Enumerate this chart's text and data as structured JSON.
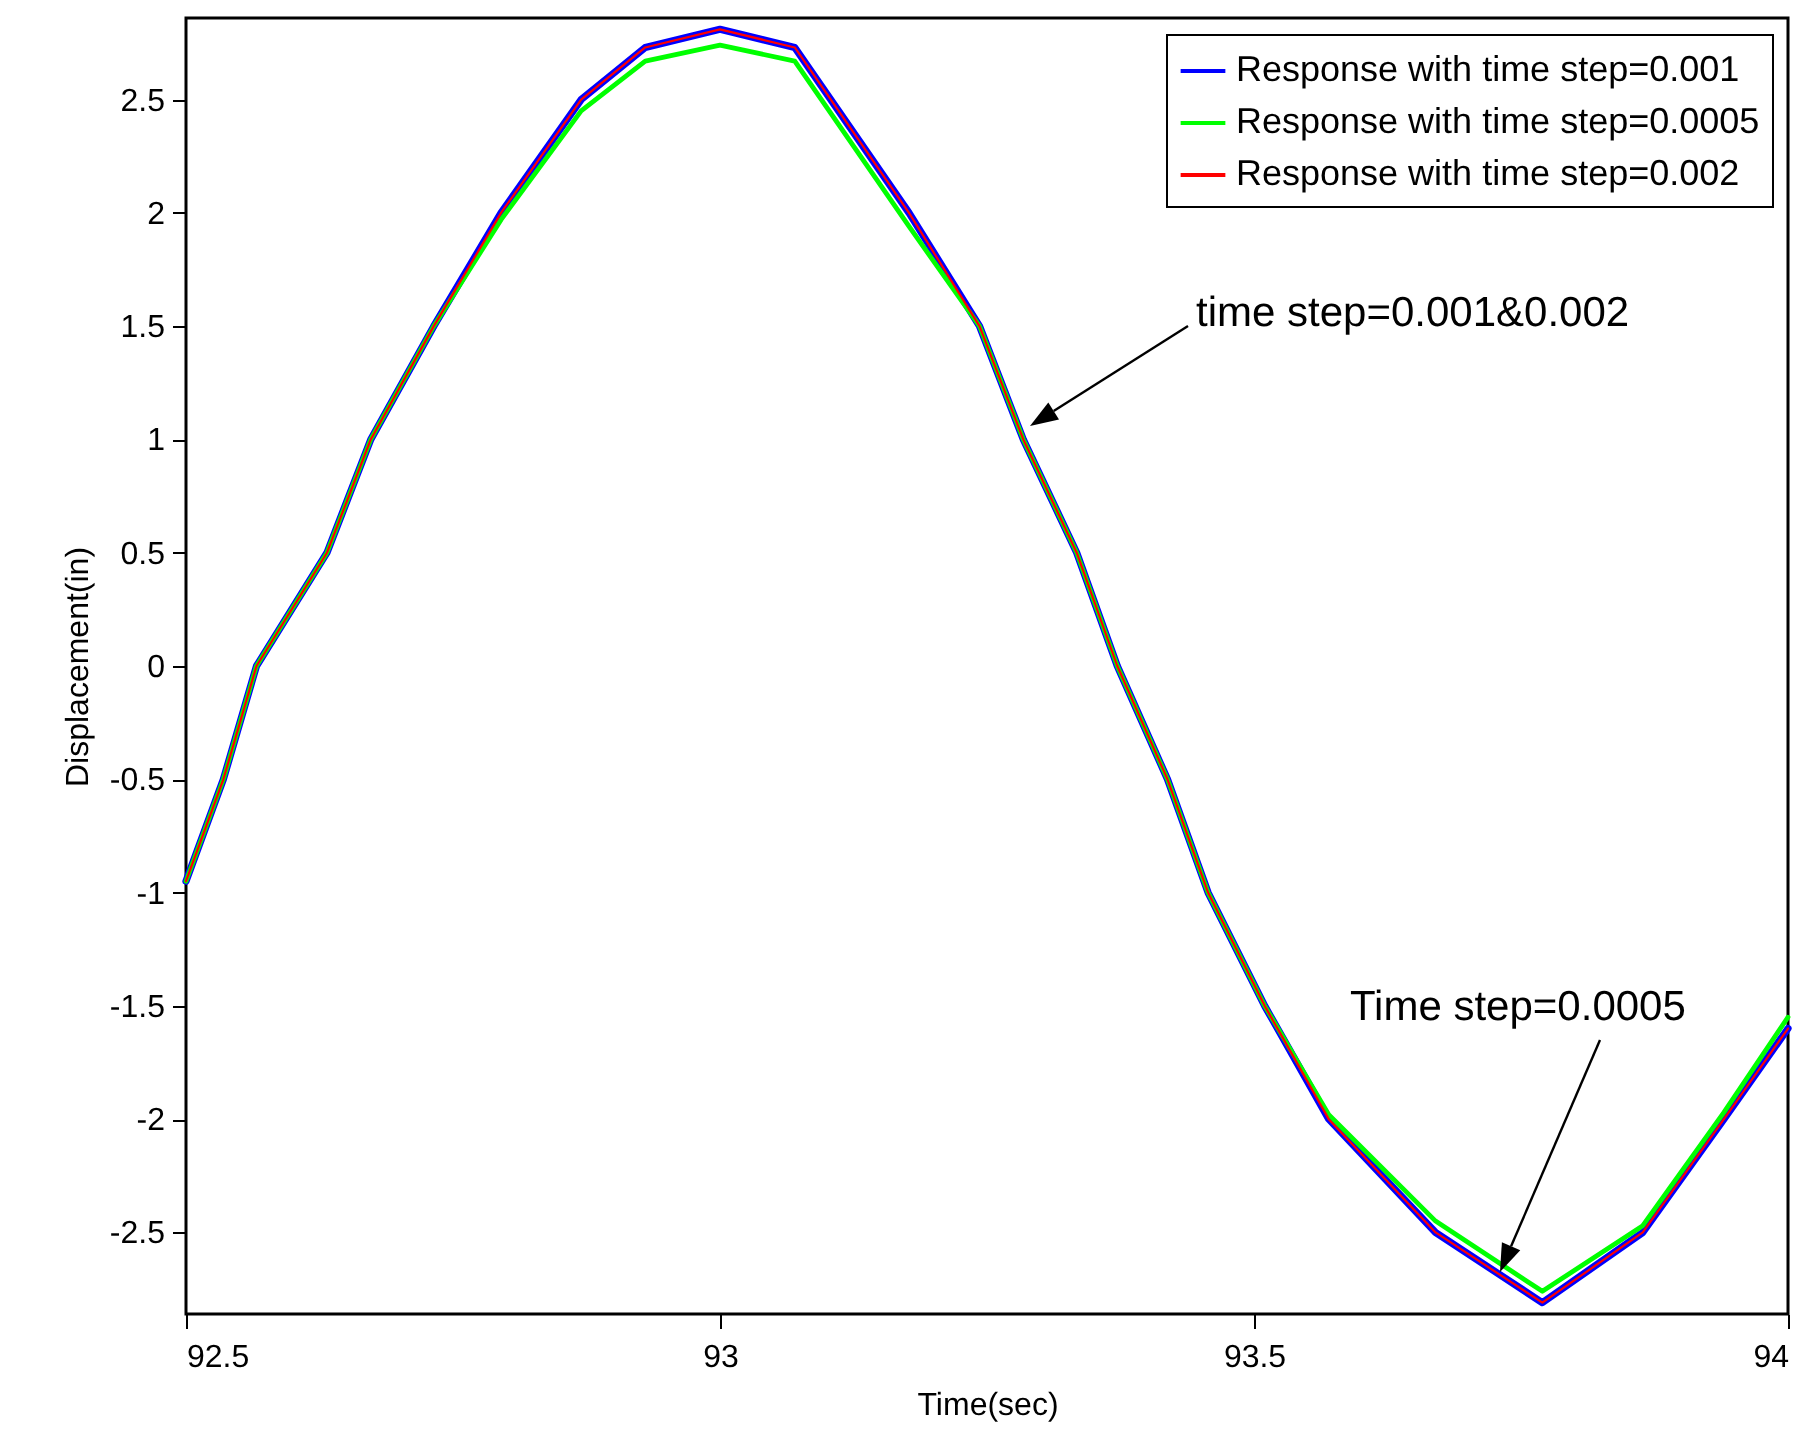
{
  "chart_data": {
    "type": "line",
    "xlabel": "Time(sec)",
    "ylabel": "Displacement(in)",
    "xlim": [
      92.5,
      94
    ],
    "xticks": [
      92.5,
      93,
      93.5,
      94
    ],
    "ylim": [
      -2.86,
      2.86
    ],
    "yticks": [
      -2.5,
      -2,
      -1.5,
      -1,
      -0.5,
      0,
      0.5,
      1,
      1.5,
      2,
      2.5
    ],
    "legend": "top right",
    "grid": false,
    "series": [
      {
        "name": "Response with time step=0.001",
        "color": "#0000ff",
        "x": [
          92.5,
          92.535,
          92.566,
          92.632,
          92.673,
          92.732,
          92.795,
          92.87,
          92.93,
          93.0,
          93.07,
          93.177,
          93.243,
          93.284,
          93.334,
          93.372,
          93.419,
          93.457,
          93.51,
          93.57,
          93.67,
          93.77,
          93.864,
          93.94,
          94.0
        ],
        "values": [
          -0.95,
          -0.5,
          0,
          0.5,
          1.0,
          1.5,
          2.0,
          2.5,
          2.73,
          2.81,
          2.73,
          2.0,
          1.5,
          1.0,
          0.5,
          0,
          -0.5,
          -1.0,
          -1.5,
          -2.0,
          -2.5,
          -2.81,
          -2.5,
          -2.0,
          -1.6
        ]
      },
      {
        "name": "Response with time step=0.0005",
        "color": "#00ff00",
        "x": [
          92.5,
          92.535,
          92.566,
          92.632,
          92.673,
          92.732,
          92.795,
          92.87,
          92.93,
          93.0,
          93.07,
          93.177,
          93.243,
          93.284,
          93.334,
          93.372,
          93.419,
          93.457,
          93.51,
          93.57,
          93.67,
          93.77,
          93.864,
          93.94,
          94.0
        ],
        "values": [
          -0.95,
          -0.5,
          0,
          0.5,
          1.0,
          1.5,
          1.97,
          2.45,
          2.67,
          2.74,
          2.67,
          1.94,
          1.5,
          1.0,
          0.5,
          0,
          -0.5,
          -1.0,
          -1.5,
          -1.98,
          -2.45,
          -2.76,
          -2.47,
          -1.97,
          -1.55
        ]
      },
      {
        "name": "Response with time step=0.002",
        "color": "#ff0000",
        "x": [
          92.5,
          92.535,
          92.566,
          92.632,
          92.673,
          92.732,
          92.795,
          92.87,
          92.93,
          93.0,
          93.07,
          93.177,
          93.243,
          93.284,
          93.334,
          93.372,
          93.419,
          93.457,
          93.51,
          93.57,
          93.67,
          93.77,
          93.864,
          93.94,
          94.0
        ],
        "values": [
          -0.95,
          -0.5,
          0,
          0.5,
          1.0,
          1.5,
          2.0,
          2.5,
          2.73,
          2.81,
          2.73,
          2.0,
          1.5,
          1.0,
          0.5,
          0,
          -0.5,
          -1.0,
          -1.5,
          -2.0,
          -2.5,
          -2.81,
          -2.5,
          -2.0,
          -1.6
        ]
      }
    ],
    "annotations": [
      "time step=0.001&0.002",
      "Time step=0.0005"
    ]
  }
}
